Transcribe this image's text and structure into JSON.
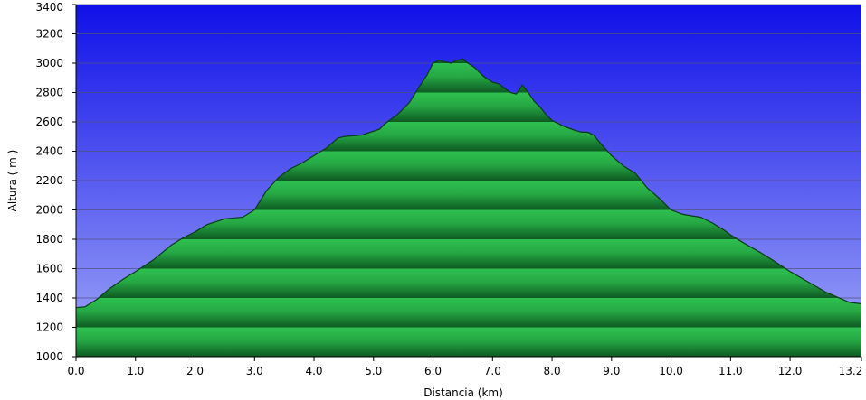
{
  "chart_data": {
    "type": "area",
    "title": "",
    "xlabel": "Distancia   (km)",
    "ylabel": "Altura ( m )",
    "xlim": [
      0,
      13.2
    ],
    "ylim": [
      1000,
      3400
    ],
    "x_tick_labels": [
      "0.0",
      "1.0",
      "2.0",
      "3.0",
      "4.0",
      "5.0",
      "6.0",
      "7.0",
      "8.0",
      "9.0",
      "10.0",
      "11.0",
      "12.0",
      "13.2"
    ],
    "x_tick_values": [
      0,
      1,
      2,
      3,
      4,
      5,
      6,
      7,
      8,
      9,
      10,
      11,
      12,
      13.2
    ],
    "y_tick_labels": [
      "1000",
      "1200",
      "1400",
      "1600",
      "1800",
      "2000",
      "2200",
      "2400",
      "2600",
      "2800",
      "3000",
      "3200",
      "3400"
    ],
    "y_tick_values": [
      1000,
      1200,
      1400,
      1600,
      1800,
      2000,
      2200,
      2400,
      2600,
      2800,
      3000,
      3200,
      3400
    ],
    "grid": true,
    "colors": {
      "sky_top": "#1010e8",
      "sky_bottom": "#a0a8f8",
      "fill_light": "#2ec050",
      "fill_dark": "#0e5a22",
      "outline": "#0a3a18",
      "grid": "#505080"
    },
    "x": [
      0.0,
      0.15,
      0.35,
      0.55,
      0.8,
      1.0,
      1.3,
      1.6,
      1.8,
      2.0,
      2.2,
      2.5,
      2.8,
      3.0,
      3.2,
      3.4,
      3.6,
      3.8,
      4.0,
      4.2,
      4.4,
      4.5,
      4.8,
      5.1,
      5.2,
      5.4,
      5.5,
      5.6,
      5.8,
      5.9,
      6.0,
      6.1,
      6.2,
      6.3,
      6.4,
      6.5,
      6.55,
      6.7,
      6.85,
      7.0,
      7.1,
      7.2,
      7.3,
      7.4,
      7.5,
      7.6,
      7.7,
      7.8,
      7.9,
      8.0,
      8.2,
      8.4,
      8.5,
      8.6,
      8.7,
      8.8,
      9.0,
      9.2,
      9.4,
      9.6,
      9.8,
      10.0,
      10.2,
      10.5,
      10.7,
      10.9,
      11.0,
      11.2,
      11.5,
      11.7,
      12.0,
      12.3,
      12.6,
      13.0,
      13.2
    ],
    "y": [
      1335,
      1340,
      1390,
      1460,
      1530,
      1580,
      1660,
      1760,
      1810,
      1850,
      1900,
      1940,
      1950,
      2000,
      2130,
      2220,
      2280,
      2320,
      2370,
      2420,
      2490,
      2500,
      2510,
      2550,
      2590,
      2650,
      2690,
      2730,
      2860,
      2920,
      3000,
      3020,
      3010,
      3000,
      3020,
      3030,
      3010,
      2970,
      2910,
      2870,
      2860,
      2830,
      2800,
      2790,
      2850,
      2800,
      2740,
      2700,
      2650,
      2610,
      2570,
      2540,
      2530,
      2530,
      2510,
      2460,
      2370,
      2300,
      2250,
      2150,
      2080,
      2000,
      1970,
      1950,
      1910,
      1860,
      1830,
      1780,
      1710,
      1660,
      1580,
      1510,
      1440,
      1370,
      1360
    ]
  }
}
